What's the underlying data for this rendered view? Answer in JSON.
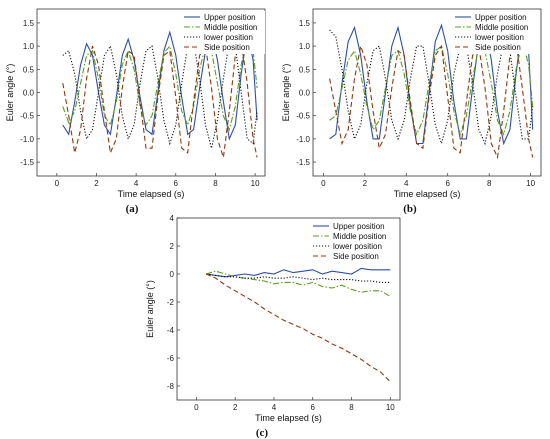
{
  "chart_data": [
    {
      "type": "line",
      "panel_label": "(a)",
      "xlabel": "Time elapsed (s)",
      "ylabel": "Euler angle (°)",
      "xlim": [
        -1,
        10.5
      ],
      "ylim": [
        -1.8,
        1.8
      ],
      "xticks": [
        "0",
        "2",
        "4",
        "6",
        "8",
        "10"
      ],
      "yticks": [
        "-1.5",
        "-1.0",
        "-0.5",
        "0.0",
        "0.5",
        "1.0",
        "1.5"
      ],
      "legend_position": "top-right",
      "series": [
        {
          "name": "Upper position",
          "color": "#2e4fa3",
          "dash": "none",
          "x": [
            0.3,
            0.6,
            0.9,
            1.2,
            1.5,
            1.8,
            2.1,
            2.4,
            2.7,
            3.0,
            3.3,
            3.6,
            3.9,
            4.2,
            4.5,
            4.8,
            5.1,
            5.4,
            5.7,
            6.0,
            6.3,
            6.6,
            6.9,
            7.2,
            7.5,
            7.8,
            8.1,
            8.4,
            8.7,
            9.0,
            9.3,
            9.6,
            9.9,
            10.1
          ],
          "y": [
            -0.7,
            -0.9,
            -0.2,
            0.6,
            1.05,
            0.8,
            0.0,
            -0.7,
            -0.9,
            -0.1,
            0.8,
            1.15,
            0.7,
            -0.1,
            -0.8,
            -0.9,
            0.0,
            0.9,
            1.3,
            0.8,
            -0.1,
            -0.9,
            -0.8,
            0.1,
            0.9,
            1.3,
            0.7,
            -0.2,
            -1.0,
            -0.7,
            0.4,
            1.3,
            0.7,
            -0.6
          ]
        },
        {
          "name": "Middle position",
          "color": "#5a9e1e",
          "dash": "6,2,1.5,2",
          "x": [
            0.3,
            0.6,
            0.9,
            1.2,
            1.5,
            1.8,
            2.1,
            2.4,
            2.7,
            3.0,
            3.3,
            3.6,
            3.9,
            4.2,
            4.5,
            4.8,
            5.1,
            5.4,
            5.7,
            6.0,
            6.3,
            6.6,
            6.9,
            7.2,
            7.5,
            7.8,
            8.1,
            8.4,
            8.7,
            9.0,
            9.3,
            9.6,
            9.9,
            10.1
          ],
          "y": [
            -0.3,
            -0.65,
            -0.4,
            0.2,
            0.8,
            0.9,
            0.3,
            -0.5,
            -0.7,
            -0.2,
            0.6,
            0.9,
            0.5,
            -0.3,
            -0.7,
            -0.5,
            0.2,
            0.85,
            1.0,
            0.4,
            -0.4,
            -0.7,
            -0.3,
            0.5,
            1.0,
            0.9,
            0.2,
            -0.5,
            -0.8,
            -0.3,
            0.6,
            1.2,
            0.9,
            0.1
          ]
        },
        {
          "name": "lower position",
          "color": "#111111",
          "dash": "1.2,1.8",
          "x": [
            0.3,
            0.6,
            0.9,
            1.2,
            1.5,
            1.8,
            2.1,
            2.4,
            2.7,
            3.0,
            3.3,
            3.6,
            3.9,
            4.2,
            4.5,
            4.8,
            5.1,
            5.4,
            5.7,
            6.0,
            6.3,
            6.6,
            6.9,
            7.2,
            7.5,
            7.8,
            8.1,
            8.4,
            8.7,
            9.0,
            9.3,
            9.6,
            9.9,
            10.1
          ],
          "y": [
            0.8,
            0.9,
            0.4,
            -0.4,
            -1.0,
            -0.8,
            0.0,
            0.8,
            1.0,
            0.4,
            -0.5,
            -1.0,
            -0.7,
            0.2,
            0.9,
            1.0,
            0.3,
            -0.6,
            -1.1,
            -0.7,
            0.2,
            1.0,
            1.1,
            0.3,
            -0.7,
            -1.2,
            -0.6,
            0.3,
            1.1,
            1.0,
            0.0,
            -1.0,
            -1.1,
            -0.4
          ]
        },
        {
          "name": "Side position",
          "color": "#8b3a0f",
          "dash": "5,3",
          "x": [
            0.3,
            0.6,
            0.9,
            1.2,
            1.5,
            1.8,
            2.1,
            2.4,
            2.7,
            3.0,
            3.3,
            3.6,
            3.9,
            4.2,
            4.5,
            4.8,
            5.1,
            5.4,
            5.7,
            6.0,
            6.3,
            6.6,
            6.9,
            7.2,
            7.5,
            7.8,
            8.1,
            8.4,
            8.7,
            9.0,
            9.3,
            9.6,
            9.9,
            10.1
          ],
          "y": [
            0.2,
            -0.5,
            -1.3,
            -0.8,
            0.3,
            1.0,
            0.6,
            -0.4,
            -1.3,
            -1.0,
            0.1,
            0.9,
            0.8,
            -0.2,
            -1.2,
            -1.2,
            -0.1,
            0.8,
            0.9,
            -0.1,
            -1.2,
            -1.3,
            -0.2,
            0.8,
            1.0,
            0.1,
            -1.0,
            -1.4,
            -0.4,
            0.8,
            1.1,
            0.2,
            -1.0,
            -1.4
          ]
        }
      ]
    },
    {
      "type": "line",
      "panel_label": "(b)",
      "xlabel": "Time elapsed (s)",
      "ylabel": "Euler angle (°)",
      "xlim": [
        -0.5,
        10.5
      ],
      "ylim": [
        -1.8,
        1.8
      ],
      "xticks": [
        "0",
        "2",
        "4",
        "6",
        "8",
        "10"
      ],
      "yticks": [
        "-1.5",
        "-1.0",
        "-0.5",
        "0.0",
        "0.5",
        "1.0",
        "1.5"
      ],
      "legend_position": "top-right",
      "series": [
        {
          "name": "Upper position",
          "color": "#2e4fa3",
          "dash": "none",
          "x": [
            0.3,
            0.6,
            0.9,
            1.2,
            1.5,
            1.8,
            2.1,
            2.4,
            2.7,
            3.0,
            3.3,
            3.6,
            3.9,
            4.2,
            4.5,
            4.8,
            5.1,
            5.4,
            5.7,
            6.0,
            6.3,
            6.6,
            6.9,
            7.2,
            7.5,
            7.8,
            8.1,
            8.4,
            8.7,
            9.0,
            9.3,
            9.6,
            9.9,
            10.1
          ],
          "y": [
            -1.0,
            -0.9,
            0.2,
            1.1,
            1.4,
            0.8,
            -0.2,
            -1.0,
            -1.0,
            0.0,
            1.0,
            1.4,
            0.8,
            -0.3,
            -1.1,
            -1.1,
            0.0,
            1.1,
            1.45,
            0.9,
            -0.2,
            -1.0,
            -1.0,
            0.1,
            1.1,
            1.45,
            0.7,
            -0.4,
            -1.1,
            -0.8,
            0.4,
            1.5,
            0.9,
            -0.8
          ]
        },
        {
          "name": "Middle position",
          "color": "#5a9e1e",
          "dash": "6,2,1.5,2",
          "x": [
            0.3,
            0.6,
            0.9,
            1.2,
            1.5,
            1.8,
            2.1,
            2.4,
            2.7,
            3.0,
            3.3,
            3.6,
            3.9,
            4.2,
            4.5,
            4.8,
            5.1,
            5.4,
            5.7,
            6.0,
            6.3,
            6.6,
            6.9,
            7.2,
            7.5,
            7.8,
            8.1,
            8.4,
            8.7,
            9.0,
            9.3,
            9.6,
            9.9,
            10.1
          ],
          "y": [
            -0.6,
            -0.5,
            0.1,
            0.7,
            0.9,
            0.4,
            -0.3,
            -0.8,
            -0.6,
            0.1,
            0.8,
            0.9,
            0.4,
            -0.4,
            -0.9,
            -0.6,
            0.2,
            0.9,
            1.0,
            0.4,
            -0.4,
            -0.9,
            -0.5,
            0.3,
            1.0,
            0.9,
            0.2,
            -0.6,
            -0.9,
            -0.4,
            0.5,
            1.1,
            0.6,
            -0.3
          ]
        },
        {
          "name": "lower position",
          "color": "#111111",
          "dash": "1.2,1.8",
          "x": [
            0.3,
            0.6,
            0.9,
            1.2,
            1.5,
            1.8,
            2.1,
            2.4,
            2.7,
            3.0,
            3.3,
            3.6,
            3.9,
            4.2,
            4.5,
            4.8,
            5.1,
            5.4,
            5.7,
            6.0,
            6.3,
            6.6,
            6.9,
            7.2,
            7.5,
            7.8,
            8.1,
            8.4,
            8.7,
            9.0,
            9.3,
            9.6,
            9.9,
            10.1
          ],
          "y": [
            1.35,
            1.2,
            0.5,
            -0.4,
            -1.0,
            -0.7,
            0.2,
            0.9,
            1.0,
            0.3,
            -0.6,
            -1.0,
            -0.6,
            0.3,
            1.0,
            1.0,
            0.2,
            -0.7,
            -1.1,
            -0.6,
            0.4,
            1.0,
            1.0,
            0.2,
            -0.8,
            -1.1,
            -0.5,
            0.4,
            1.1,
            0.9,
            -0.1,
            -1.0,
            -1.0,
            -0.3
          ]
        },
        {
          "name": "Side position",
          "color": "#8b3a0f",
          "dash": "5,3",
          "x": [
            0.3,
            0.6,
            0.9,
            1.2,
            1.5,
            1.8,
            2.1,
            2.4,
            2.7,
            3.0,
            3.3,
            3.6,
            3.9,
            4.2,
            4.5,
            4.8,
            5.1,
            5.4,
            5.7,
            6.0,
            6.3,
            6.6,
            6.9,
            7.2,
            7.5,
            7.8,
            8.1,
            8.4,
            8.7,
            9.0,
            9.3,
            9.6,
            9.9,
            10.1
          ],
          "y": [
            0.3,
            -0.4,
            -1.1,
            -0.8,
            0.3,
            1.0,
            0.6,
            -0.4,
            -1.2,
            -0.9,
            0.1,
            0.9,
            0.8,
            -0.2,
            -1.1,
            -1.2,
            -0.1,
            0.8,
            1.0,
            -0.1,
            -1.2,
            -1.3,
            -0.2,
            0.8,
            1.0,
            0.1,
            -1.1,
            -1.4,
            -0.4,
            0.8,
            1.1,
            0.1,
            -1.0,
            -1.4
          ]
        }
      ]
    },
    {
      "type": "line",
      "panel_label": "(c)",
      "xlabel": "Time elapsed (s)",
      "ylabel": "Euler angle (°)",
      "xlim": [
        -1,
        10.5
      ],
      "ylim": [
        -9,
        4
      ],
      "xticks": [
        "0",
        "2",
        "4",
        "6",
        "8",
        "10"
      ],
      "yticks": [
        "-8",
        "-6",
        "-4",
        "-2",
        "0",
        "2",
        "4"
      ],
      "legend_position": "top-right",
      "series": [
        {
          "name": "Upper position",
          "color": "#2e4fa3",
          "dash": "none",
          "x": [
            0.5,
            1.0,
            1.5,
            2.0,
            2.5,
            3.0,
            3.5,
            4.0,
            4.5,
            5.0,
            5.5,
            6.0,
            6.5,
            7.0,
            7.5,
            8.0,
            8.5,
            9.0,
            9.5,
            10.0
          ],
          "y": [
            0.0,
            -0.1,
            -0.2,
            -0.1,
            0.0,
            -0.1,
            0.1,
            0.0,
            0.3,
            0.1,
            0.2,
            0.3,
            0.0,
            0.2,
            0.1,
            0.0,
            0.4,
            0.3,
            0.3,
            0.3
          ]
        },
        {
          "name": "Middle position",
          "color": "#5a9e1e",
          "dash": "6,2,1.5,2",
          "x": [
            0.5,
            1.0,
            1.5,
            2.0,
            2.5,
            3.0,
            3.5,
            4.0,
            4.5,
            5.0,
            5.5,
            6.0,
            6.5,
            7.0,
            7.5,
            8.0,
            8.5,
            9.0,
            9.5,
            10.0
          ],
          "y": [
            0.0,
            0.2,
            0.0,
            -0.2,
            -0.3,
            -0.4,
            -0.5,
            -0.7,
            -0.6,
            -0.6,
            -0.8,
            -0.6,
            -0.9,
            -1.0,
            -0.8,
            -1.1,
            -1.3,
            -1.2,
            -1.2,
            -1.6
          ]
        },
        {
          "name": "lower position",
          "color": "#111111",
          "dash": "1.2,1.8",
          "x": [
            0.5,
            1.0,
            1.5,
            2.0,
            2.5,
            3.0,
            3.5,
            4.0,
            4.5,
            5.0,
            5.5,
            6.0,
            6.5,
            7.0,
            7.5,
            8.0,
            8.5,
            9.0,
            9.5,
            10.0
          ],
          "y": [
            0.0,
            -0.1,
            -0.2,
            -0.2,
            -0.3,
            -0.3,
            -0.2,
            -0.3,
            -0.3,
            -0.2,
            -0.3,
            -0.4,
            -0.3,
            -0.4,
            -0.4,
            -0.4,
            -0.5,
            -0.5,
            -0.6,
            -0.6
          ]
        },
        {
          "name": "Side position",
          "color": "#8b3a0f",
          "dash": "5,3",
          "x": [
            0.5,
            1.0,
            1.5,
            2.0,
            2.5,
            3.0,
            3.5,
            4.0,
            4.5,
            5.0,
            5.5,
            6.0,
            6.5,
            7.0,
            7.5,
            8.0,
            8.5,
            9.0,
            9.5,
            10.0
          ],
          "y": [
            0.0,
            -0.3,
            -0.8,
            -1.2,
            -1.6,
            -2.0,
            -2.5,
            -2.9,
            -3.3,
            -3.6,
            -3.9,
            -4.3,
            -4.6,
            -5.0,
            -5.3,
            -5.7,
            -6.1,
            -6.6,
            -7.0,
            -7.7
          ]
        }
      ]
    }
  ]
}
